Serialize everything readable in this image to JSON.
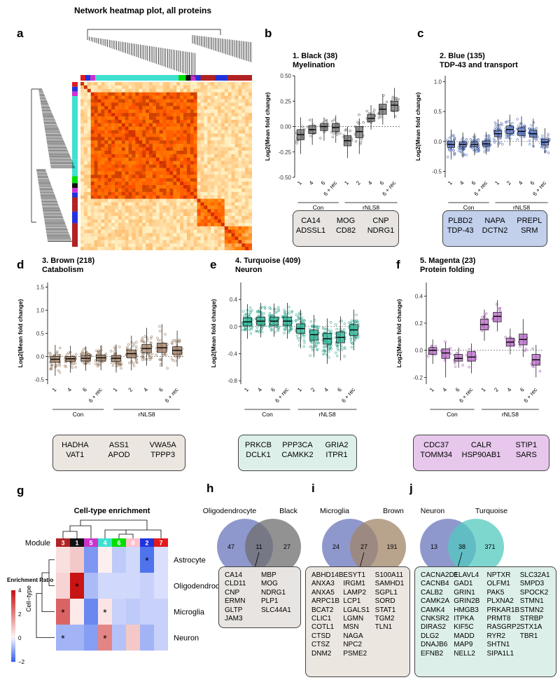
{
  "panel_a": {
    "label": "a",
    "title": "Network heatmap plot, all proteins",
    "module_colors": [
      "#e31a1c",
      "#2233dd",
      "#cc33cc",
      "#40e0d0",
      "#40e0d0",
      "#40e0d0",
      "#00dd00",
      "#111111",
      "#cc33cc",
      "#2233dd",
      "#b22222",
      "#b22222",
      "#2233dd",
      "#b22222"
    ]
  },
  "colors": {
    "black_box": "#e7e4e1",
    "blue_box": "#c2d0ec",
    "brown_box": "#ece6e1",
    "turquoise_box": "#ddefe9",
    "magenta_box": "#e7c8ec",
    "venn_left": "#7b86c4",
    "venn_black": "#6e6e6e",
    "venn_brown": "#a08467",
    "venn_turq": "#52c9bf"
  },
  "chart_data": [
    {
      "id": "b",
      "label": "b",
      "type": "box",
      "title": "1. Black (38)",
      "subtitle": "Myelination",
      "ylabel": "Log2(Mean fold change)",
      "ylim": [
        -0.5,
        0.5
      ],
      "yticks": [
        "-0.50",
        "-0.25",
        "0.00",
        "0.25",
        "0.50"
      ],
      "categories": [
        "1",
        "4",
        "6",
        "6 + rec",
        "1",
        "2",
        "4",
        "6",
        "6 + rec"
      ],
      "groups": [
        "Con",
        "rNLS8"
      ],
      "medians": [
        -0.08,
        -0.03,
        0.0,
        -0.01,
        -0.14,
        -0.05,
        0.08,
        0.17,
        0.21
      ],
      "q1": [
        -0.13,
        -0.07,
        -0.04,
        -0.05,
        -0.19,
        -0.11,
        0.05,
        0.12,
        0.15
      ],
      "q3": [
        -0.03,
        0.01,
        0.03,
        0.03,
        -0.09,
        0.0,
        0.12,
        0.22,
        0.25
      ],
      "whisk_lo": [
        -0.27,
        -0.18,
        -0.14,
        -0.16,
        -0.31,
        -0.27,
        -0.03,
        0.02,
        0.08
      ],
      "whisk_hi": [
        0.09,
        0.08,
        0.09,
        0.11,
        0.0,
        0.08,
        0.21,
        0.32,
        0.38
      ],
      "color": "#555555",
      "box_fill": "#6e6e6e"
    },
    {
      "id": "c",
      "label": "c",
      "type": "box",
      "title": "2. Blue (135)",
      "subtitle": "TDP-43 and transport",
      "ylabel": "Log2(Mean fold change)",
      "ylim": [
        -0.6,
        1.1
      ],
      "yticks": [
        "-0.5",
        "0.0",
        "0.5",
        "1.0"
      ],
      "categories": [
        "1",
        "4",
        "6",
        "6 + rec",
        "1",
        "2",
        "4",
        "6",
        "6 + rec"
      ],
      "groups": [
        "Con",
        "rNLS8"
      ],
      "medians": [
        -0.05,
        -0.05,
        -0.05,
        -0.04,
        0.13,
        0.2,
        0.17,
        0.13,
        -0.01
      ],
      "q1": [
        -0.1,
        -0.09,
        -0.09,
        -0.08,
        0.08,
        0.13,
        0.1,
        0.07,
        -0.06
      ],
      "q3": [
        0.0,
        -0.01,
        -0.01,
        0.01,
        0.18,
        0.26,
        0.23,
        0.19,
        0.04
      ],
      "whisk_lo": [
        -0.3,
        -0.27,
        -0.23,
        -0.22,
        -0.1,
        -0.07,
        -0.08,
        -0.1,
        -0.2
      ],
      "whisk_hi": [
        0.2,
        0.15,
        0.14,
        0.16,
        0.37,
        0.45,
        0.42,
        0.38,
        0.22
      ],
      "color": "#3f5fb0",
      "box_fill": "#5b78c4"
    },
    {
      "id": "d",
      "label": "d",
      "type": "box",
      "title": "3. Brown (218)",
      "subtitle": "Catabolism",
      "ylabel": "Log2(Mean fold change)",
      "ylim": [
        -0.6,
        1.6
      ],
      "yticks": [
        "-0.5",
        "0.0",
        "0.5",
        "1.0",
        "1.5"
      ],
      "categories": [
        "1",
        "4",
        "6",
        "6 + rec",
        "1",
        "2",
        "4",
        "6",
        "6 + rec"
      ],
      "groups": [
        "Con",
        "rNLS8"
      ],
      "medians": [
        -0.06,
        -0.05,
        -0.04,
        -0.03,
        -0.04,
        0.06,
        0.17,
        0.19,
        0.13
      ],
      "q1": [
        -0.13,
        -0.11,
        -0.1,
        -0.1,
        -0.11,
        -0.03,
        0.08,
        0.09,
        0.05
      ],
      "q3": [
        0.0,
        0.0,
        0.02,
        0.03,
        0.02,
        0.14,
        0.26,
        0.29,
        0.21
      ],
      "whisk_lo": [
        -0.42,
        -0.35,
        -0.31,
        -0.3,
        -0.35,
        -0.3,
        -0.2,
        -0.22,
        -0.22
      ],
      "whisk_hi": [
        0.25,
        0.23,
        0.22,
        0.24,
        0.26,
        0.45,
        0.62,
        0.7,
        0.56
      ],
      "color": "#8b6b4f",
      "box_fill": "#a3826a"
    },
    {
      "id": "e",
      "label": "e",
      "type": "box",
      "title": "4. Turquoise (409)",
      "subtitle": "Neuron",
      "ylabel": "Log2(Mean fold change)",
      "ylim": [
        -0.85,
        0.65
      ],
      "yticks": [
        "-0.8",
        "-0.4",
        "0.0",
        "0.4"
      ],
      "categories": [
        "1",
        "4",
        "6",
        "6 + rec",
        "1",
        "2",
        "4",
        "6",
        "6 + rec"
      ],
      "groups": [
        "Con",
        "rNLS8"
      ],
      "medians": [
        0.07,
        0.08,
        0.08,
        0.08,
        -0.03,
        -0.12,
        -0.18,
        -0.16,
        -0.05
      ],
      "q1": [
        0.01,
        0.02,
        0.02,
        0.02,
        -0.1,
        -0.2,
        -0.26,
        -0.24,
        -0.13
      ],
      "q3": [
        0.13,
        0.14,
        0.14,
        0.14,
        0.04,
        -0.05,
        -0.1,
        -0.08,
        0.03
      ],
      "whisk_lo": [
        -0.18,
        -0.16,
        -0.15,
        -0.18,
        -0.32,
        -0.45,
        -0.55,
        -0.5,
        -0.35
      ],
      "whisk_hi": [
        0.33,
        0.35,
        0.34,
        0.35,
        0.25,
        0.17,
        0.12,
        0.15,
        0.25
      ],
      "color": "#1f9e85",
      "box_fill": "#2fb598"
    },
    {
      "id": "f",
      "label": "f",
      "type": "box",
      "title": "5. Magenta (23)",
      "subtitle": "Protein folding",
      "ylabel": "Log2(Mean fold change)",
      "ylim": [
        -0.25,
        0.5
      ],
      "yticks": [
        "-0.2",
        "0.0",
        "0.2",
        "0.4"
      ],
      "categories": [
        "1",
        "4",
        "6",
        "6 + rec",
        "1",
        "2",
        "4",
        "6",
        "6 + rec"
      ],
      "groups": [
        "Con",
        "rNLS8"
      ],
      "medians": [
        0.0,
        -0.02,
        -0.06,
        -0.05,
        0.19,
        0.25,
        0.06,
        0.08,
        -0.07
      ],
      "q1": [
        -0.03,
        -0.06,
        -0.08,
        -0.08,
        0.15,
        0.21,
        0.03,
        0.04,
        -0.11
      ],
      "q3": [
        0.02,
        0.01,
        -0.03,
        -0.01,
        0.23,
        0.28,
        0.09,
        0.12,
        -0.03
      ],
      "whisk_lo": [
        -0.1,
        -0.2,
        -0.13,
        -0.17,
        0.07,
        0.14,
        -0.03,
        -0.05,
        -0.2
      ],
      "whisk_hi": [
        0.08,
        0.06,
        0.02,
        0.05,
        0.3,
        0.37,
        0.16,
        0.23,
        0.04
      ],
      "color": "#9b3fae",
      "box_fill": "#b765c6"
    },
    {
      "id": "g",
      "label": "g",
      "type": "heatmap",
      "title": "Cell-type enrichment",
      "module_label": "Module",
      "ylabel": "Cell−type",
      "legend_title": "Enrichment Ratio",
      "legend_ticks": [
        "4",
        "2",
        "0",
        "−2"
      ],
      "modules": [
        "3",
        "1",
        "5",
        "4",
        "6",
        "8",
        "2",
        "7"
      ],
      "module_colors": [
        "#b22222",
        "#111111",
        "#cc33cc",
        "#40e0d0",
        "#00dd00",
        "#ffc0cb",
        "#2233dd",
        "#e31a1c"
      ],
      "rows": [
        "Astrocyte",
        "Oligodendrocyte",
        "Microglia",
        "Neuron"
      ],
      "values": [
        [
          0.4,
          0.8,
          -1.3,
          0.1,
          -0.6,
          -0.4,
          -1.8,
          -0.3
        ],
        [
          0.6,
          4.0,
          -0.8,
          -0.4,
          -0.4,
          -0.4,
          -0.5,
          -0.3
        ],
        [
          2.6,
          0.2,
          -1.5,
          0.3,
          -0.5,
          -0.6,
          -0.5,
          -0.5
        ],
        [
          -0.9,
          -0.9,
          -1.2,
          2.0,
          -0.7,
          0.8,
          -0.9,
          -0.5
        ]
      ],
      "stars": [
        [
          0,
          6
        ],
        [
          1,
          1
        ],
        [
          2,
          0
        ],
        [
          2,
          3
        ],
        [
          3,
          0
        ],
        [
          3,
          3
        ]
      ]
    }
  ],
  "venns": [
    {
      "label": "h",
      "left": "Oligodendrocyte",
      "right": "Black",
      "left_n": "47",
      "overlap_n": "11",
      "right_n": "27",
      "genes": [
        [
          "CA14",
          "CLD11",
          "CNP",
          "ERMN",
          "GLTP",
          "JAM3"
        ],
        [
          "MBP",
          "MOG",
          "NDRG1",
          "PLP1",
          "SLC44A1"
        ]
      ]
    },
    {
      "label": "i",
      "left": "Microglia",
      "right": "Brown",
      "left_n": "24",
      "overlap_n": "27",
      "right_n": "191",
      "genes": [
        [
          "ABHD14B",
          "ANXA3",
          "ANXA5",
          "ARPC1B",
          "BCAT2",
          "CLIC1",
          "COTL1",
          "CTSD",
          "CTSZ",
          "DNM2"
        ],
        [
          "ESYT1",
          "IRGM1",
          "LAMP2",
          "LCP1",
          "LGALS1",
          "LGMN",
          "MSN",
          "NAGA",
          "NPC2",
          "PSME2"
        ],
        [
          "S100A11",
          "SAMHD1",
          "SGPL1",
          "SORD",
          "STAT1",
          "TGM2",
          "TLN1"
        ]
      ]
    },
    {
      "label": "j",
      "left": "Neuron",
      "right": "Turquoise",
      "left_n": "13",
      "overlap_n": "38",
      "right_n": "371",
      "genes": [
        [
          "CACNA2D1",
          "CACNB4",
          "CALB2",
          "CAMK2A",
          "CAMK4",
          "CNKSR2",
          "DIRAS2",
          "DLG2",
          "DNAJB6",
          "EFNB2"
        ],
        [
          "ELAVL4",
          "GAD1",
          "GRIN1",
          "GRIN2B",
          "HMGB3",
          "ITPKA",
          "KIF5C",
          "MADD",
          "MAP9",
          "NELL2"
        ],
        [
          "NPTXR",
          "OLFM1",
          "PAK5",
          "PLXNA2",
          "PRKAR1B",
          "PRMT8",
          "RASGRP2",
          "RYR2",
          "SHTN1",
          "SIPA1L1"
        ],
        [
          "SLC32A1",
          "SMPD3",
          "SPOCK2",
          "STMN1",
          "STMN2",
          "STRBP",
          "STX1A",
          "TBR1"
        ]
      ]
    }
  ],
  "gene_boxes": {
    "b": [
      [
        "CA14",
        "ADSSL1"
      ],
      [
        "MOG",
        "CD82"
      ],
      [
        "CNP",
        "NDRG1"
      ]
    ],
    "c": [
      [
        "PLBD2",
        "TDP-43"
      ],
      [
        "NAPA",
        "DCTN2"
      ],
      [
        "PREPL",
        "SRM"
      ]
    ],
    "d": [
      [
        "HADHA",
        "VAT1"
      ],
      [
        "ASS1",
        "APOD"
      ],
      [
        "VWA5A",
        "TPPP3"
      ]
    ],
    "e": [
      [
        "PRKCB",
        "DCLK1"
      ],
      [
        "PPP3CA",
        "CAMKK2"
      ],
      [
        "GRIA2",
        "ITPR1"
      ]
    ],
    "f": [
      [
        "CDC37",
        "TOMM34"
      ],
      [
        "CALR",
        "HSP90AB1"
      ],
      [
        "STIP1",
        "SARS"
      ]
    ]
  }
}
